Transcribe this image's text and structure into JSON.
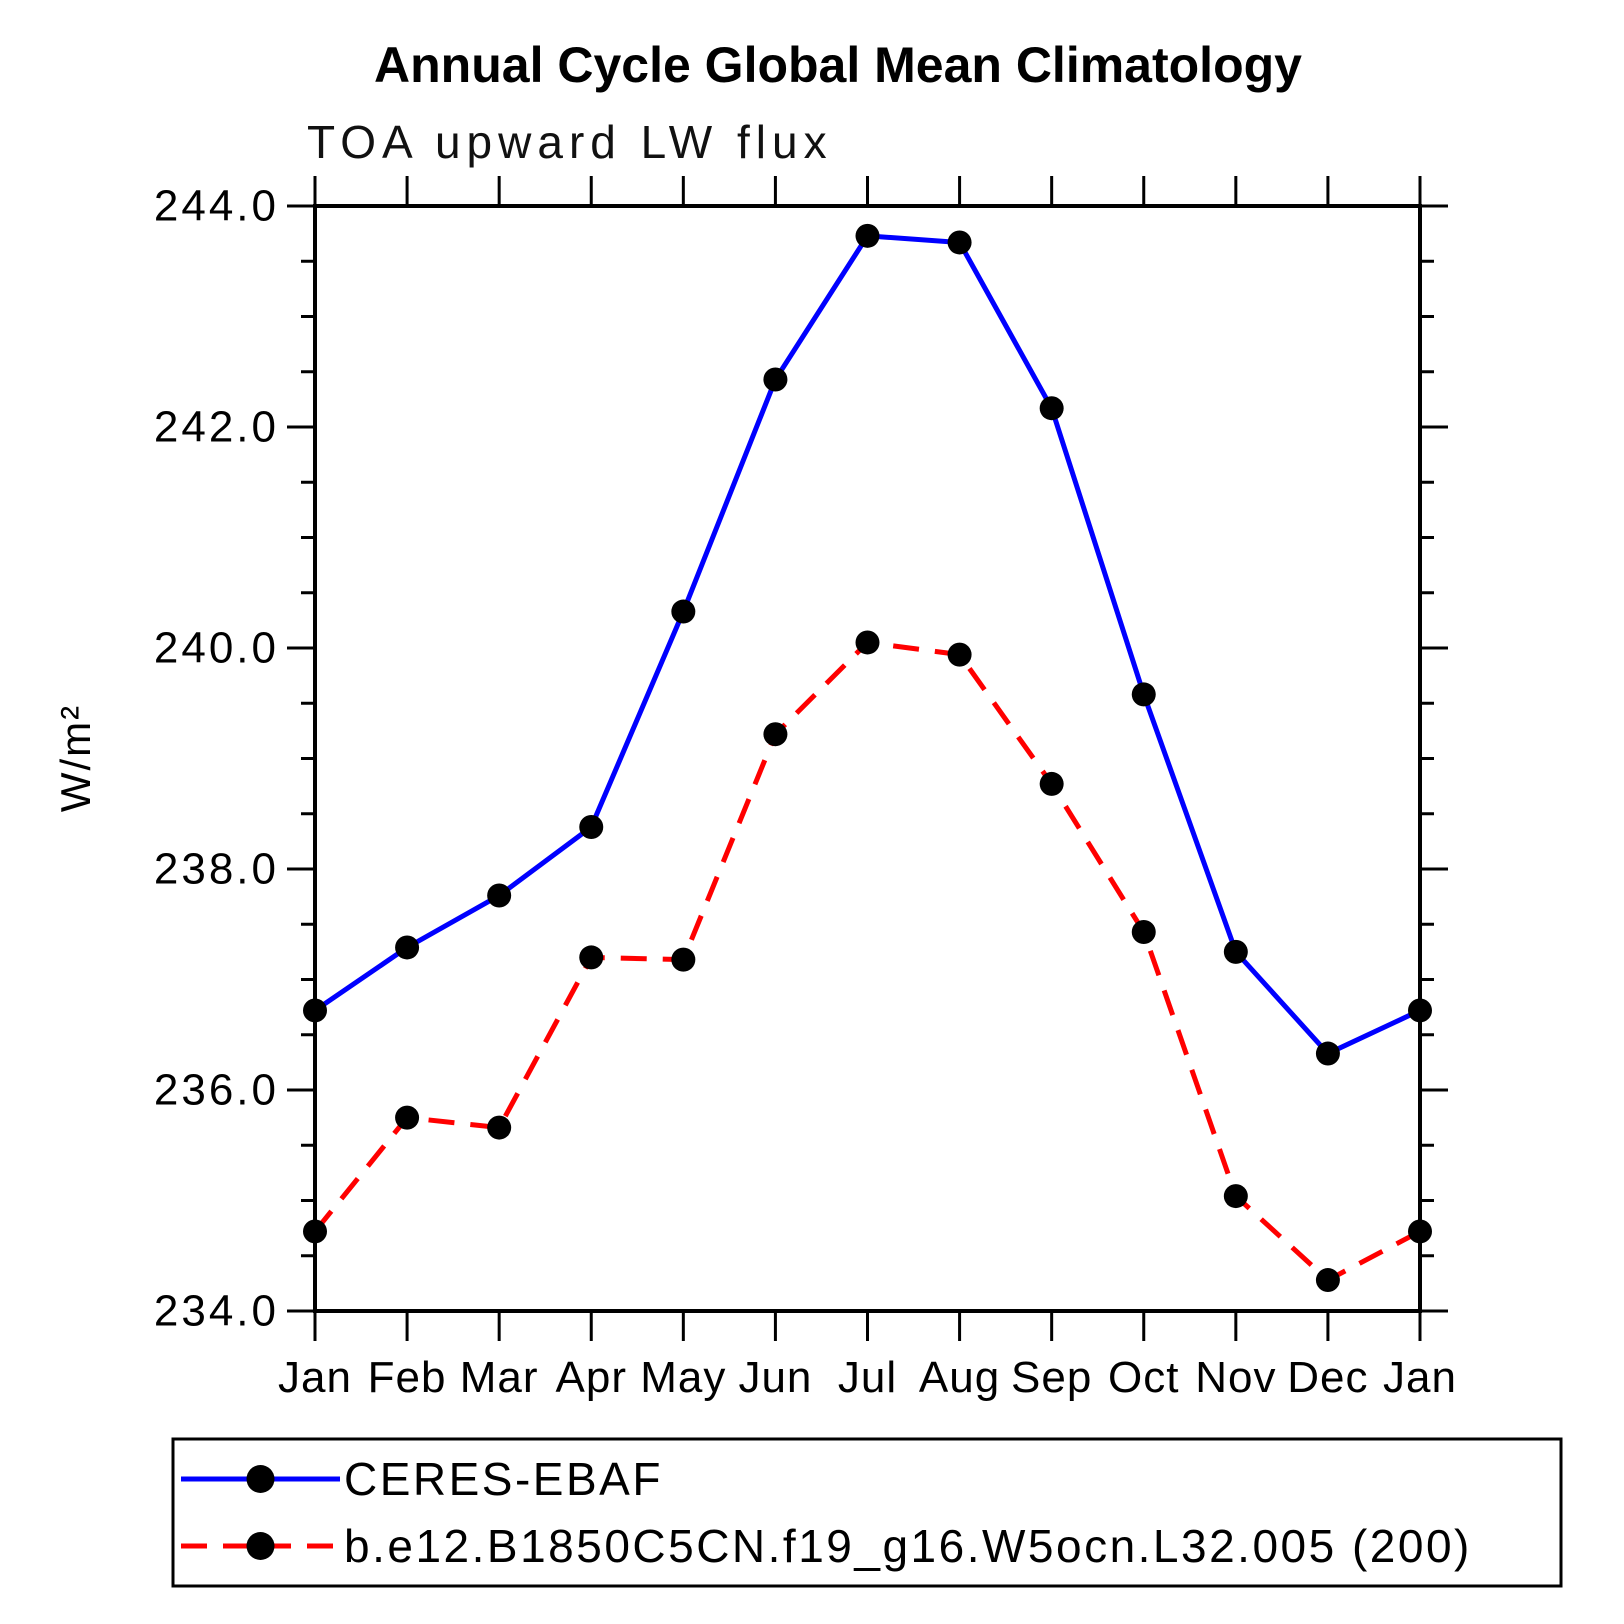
{
  "chart_data": {
    "type": "line",
    "title": "Annual Cycle Global Mean Climatology",
    "subtitle": "TOA upward LW flux",
    "ylabel": "W/m²",
    "xlabel": "",
    "categories": [
      "Jan",
      "Feb",
      "Mar",
      "Apr",
      "May",
      "Jun",
      "Jul",
      "Aug",
      "Sep",
      "Oct",
      "Nov",
      "Dec",
      "Jan"
    ],
    "ylim": [
      234.0,
      244.0
    ],
    "y_major_ticks": [
      "234.0",
      "236.0",
      "238.0",
      "240.0",
      "242.0",
      "244.0"
    ],
    "y_major_step": 2.0,
    "y_minor_step": 0.5,
    "grid": false,
    "legend_position": "bottom-left-box",
    "marker": "filled-circle",
    "marker_color": "#000000",
    "frame_color": "#000000",
    "series": [
      {
        "name": "CERES-EBAF",
        "color": "#0000ff",
        "line_style": "solid",
        "values": [
          236.72,
          237.29,
          237.76,
          238.38,
          240.33,
          242.43,
          243.73,
          243.67,
          242.17,
          239.58,
          237.25,
          236.33,
          236.72
        ]
      },
      {
        "name": "b.e12.B1850C5CN.f19_g16.W5ocn.L32.005 (200)",
        "color": "#ff0000",
        "line_style": "dashed",
        "values": [
          234.72,
          235.75,
          235.66,
          237.2,
          237.18,
          239.22,
          240.05,
          239.94,
          238.77,
          237.43,
          235.04,
          234.28,
          234.72
        ]
      }
    ]
  }
}
